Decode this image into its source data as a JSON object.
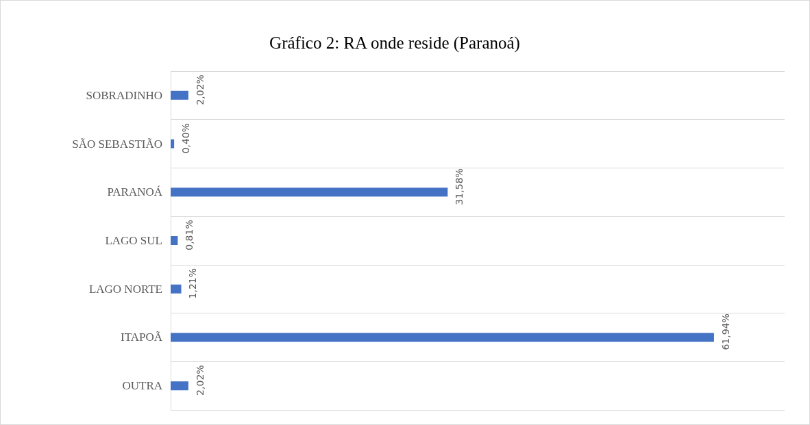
{
  "chart_data": {
    "type": "bar",
    "orientation": "horizontal",
    "title": "Gráfico 2: RA onde reside (Paranoá)",
    "categories": [
      "SOBRADINHO",
      "SÃO SEBASTIÃO",
      "PARANOÁ",
      "LAGO SUL",
      "LAGO NORTE",
      "ITAPOÃ",
      "OUTRA"
    ],
    "values": [
      2.02,
      0.4,
      31.58,
      0.81,
      1.21,
      61.94,
      2.02
    ],
    "value_labels": [
      "2,02%",
      "0,40%",
      "31,58%",
      "0,81%",
      "1,21%",
      "61,94%",
      "2,02%"
    ],
    "color": "#4472c4",
    "grid": "y",
    "tick_labels": "y"
  }
}
